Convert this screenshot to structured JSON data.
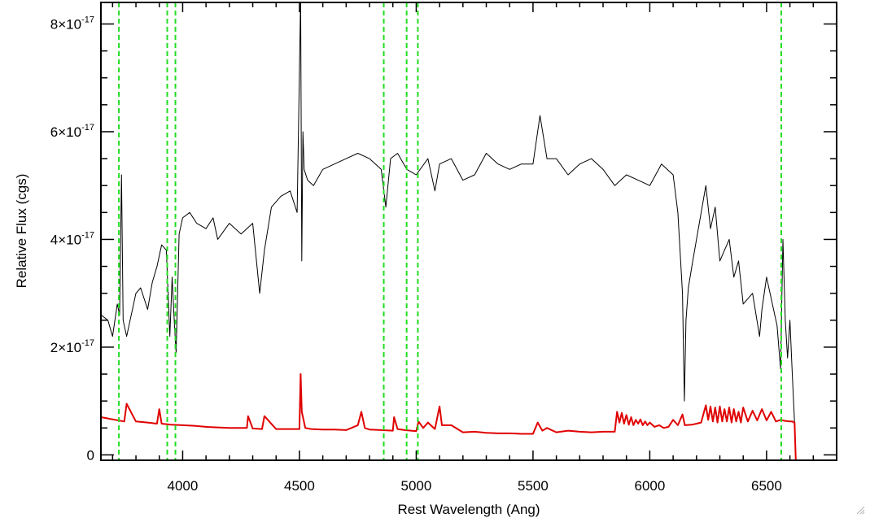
{
  "chart_data": {
    "type": "line",
    "xlabel": "Rest Wavelength (Ang)",
    "ylabel": "Relative Flux (cgs)",
    "xlim": [
      3650,
      6800
    ],
    "ylim": [
      -1e-18,
      8.4e-17
    ],
    "x_ticks": [
      4000,
      4500,
      5000,
      5500,
      6000,
      6500
    ],
    "y_ticks": [
      {
        "value": 0,
        "mantissa": "0",
        "exponent": ""
      },
      {
        "value": 2e-17,
        "mantissa": "2×10",
        "exponent": "-17"
      },
      {
        "value": 4e-17,
        "mantissa": "4×10",
        "exponent": "-17"
      },
      {
        "value": 6e-17,
        "mantissa": "6×10",
        "exponent": "-17"
      },
      {
        "value": 8e-17,
        "mantissa": "8×10",
        "exponent": "-17"
      }
    ],
    "series": [
      {
        "color": "#000000",
        "x": [
          3650,
          3680,
          3700,
          3720,
          3730,
          3738,
          3745,
          3760,
          3780,
          3800,
          3820,
          3850,
          3870,
          3890,
          3910,
          3930,
          3945,
          3955,
          3965,
          3972,
          3985,
          4000,
          4030,
          4060,
          4100,
          4130,
          4150,
          4200,
          4250,
          4300,
          4330,
          4350,
          4380,
          4420,
          4460,
          4490,
          4505,
          4510,
          4515,
          4520,
          4535,
          4560,
          4600,
          4650,
          4700,
          4750,
          4800,
          4850,
          4870,
          4890,
          4920,
          4960,
          5000,
          5050,
          5080,
          5100,
          5150,
          5200,
          5250,
          5300,
          5350,
          5400,
          5450,
          5500,
          5530,
          5560,
          5600,
          5650,
          5700,
          5750,
          5800,
          5850,
          5900,
          5950,
          6000,
          6050,
          6100,
          6120,
          6140,
          6148,
          6155,
          6165,
          6180,
          6200,
          6240,
          6260,
          6280,
          6300,
          6340,
          6360,
          6380,
          6400,
          6440,
          6470,
          6480,
          6500,
          6530,
          6545,
          6560,
          6570,
          6580,
          6590,
          6600,
          6610,
          6620
        ],
        "y": [
          2.6e-17,
          2.5e-17,
          2.2e-17,
          2.8e-17,
          2.6e-17,
          5.2e-17,
          2.5e-17,
          2.2e-17,
          2.6e-17,
          3e-17,
          3.1e-17,
          2.7e-17,
          3.2e-17,
          3.5e-17,
          3.9e-17,
          3.8e-17,
          2.2e-17,
          3.3e-17,
          2.4e-17,
          1.9e-17,
          4.1e-17,
          4.4e-17,
          4.5e-17,
          4.3e-17,
          4.2e-17,
          4.4e-17,
          4e-17,
          4.3e-17,
          4.1e-17,
          4.3e-17,
          3e-17,
          3.8e-17,
          4.6e-17,
          4.8e-17,
          4.9e-17,
          4.5e-17,
          8.5e-17,
          3.6e-17,
          6e-17,
          5.3e-17,
          5.1e-17,
          5e-17,
          5.3e-17,
          5.4e-17,
          5.5e-17,
          5.6e-17,
          5.5e-17,
          5.3e-17,
          4.6e-17,
          5.5e-17,
          5.6e-17,
          5.3e-17,
          5.2e-17,
          5.5e-17,
          4.9e-17,
          5.4e-17,
          5.5e-17,
          5.1e-17,
          5.2e-17,
          5.6e-17,
          5.4e-17,
          5.3e-17,
          5.4e-17,
          5.4e-17,
          6.3e-17,
          5.5e-17,
          5.5e-17,
          5.2e-17,
          5.4e-17,
          5.5e-17,
          5.3e-17,
          5e-17,
          5.2e-17,
          5.1e-17,
          5e-17,
          5.4e-17,
          5.2e-17,
          4.5e-17,
          3e-17,
          1e-17,
          2.5e-17,
          3.1e-17,
          3.5e-17,
          4e-17,
          5e-17,
          4.2e-17,
          4.6e-17,
          3.6e-17,
          4e-17,
          3.3e-17,
          3.6e-17,
          2.8e-17,
          3e-17,
          2.2e-17,
          2.7e-17,
          3.3e-17,
          2.7e-17,
          2.4e-17,
          1.6e-17,
          4e-17,
          2.5e-17,
          1.8e-17,
          2.5e-17,
          1.5e-17,
          6e-18
        ]
      },
      {
        "color": "#e00000",
        "x": [
          3650,
          3700,
          3750,
          3760,
          3800,
          3850,
          3890,
          3900,
          3910,
          3950,
          4000,
          4050,
          4100,
          4150,
          4200,
          4250,
          4275,
          4280,
          4300,
          4340,
          4350,
          4400,
          4450,
          4500,
          4505,
          4510,
          4520,
          4525,
          4550,
          4600,
          4650,
          4700,
          4750,
          4765,
          4780,
          4800,
          4850,
          4900,
          4905,
          4920,
          4950,
          5000,
          5010,
          5030,
          5050,
          5080,
          5100,
          5110,
          5150,
          5200,
          5250,
          5300,
          5350,
          5400,
          5450,
          5500,
          5520,
          5540,
          5560,
          5600,
          5650,
          5700,
          5750,
          5800,
          5850,
          5860,
          5870,
          5880,
          5890,
          5900,
          5910,
          5920,
          5930,
          5940,
          5950,
          5960,
          5970,
          5980,
          5990,
          6000,
          6020,
          6040,
          6060,
          6080,
          6100,
          6120,
          6140,
          6150,
          6180,
          6200,
          6220,
          6240,
          6250,
          6260,
          6270,
          6280,
          6290,
          6300,
          6310,
          6320,
          6330,
          6340,
          6350,
          6360,
          6370,
          6380,
          6390,
          6400,
          6420,
          6440,
          6460,
          6480,
          6500,
          6520,
          6540,
          6560,
          6580,
          6600,
          6610,
          6620,
          6625,
          6650,
          6700,
          6800
        ],
        "y": [
          7e-18,
          6.6e-18,
          6.2e-18,
          9.5e-18,
          6.2e-18,
          6e-18,
          5.8e-18,
          8.5e-18,
          5.8e-18,
          5.6e-18,
          5.5e-18,
          5.4e-18,
          5.2e-18,
          5.1e-18,
          5e-18,
          5e-18,
          5e-18,
          7.2e-18,
          4.9e-18,
          4.8e-18,
          7.2e-18,
          4.8e-18,
          4.8e-18,
          4.8e-18,
          1.5e-17,
          8e-18,
          6e-18,
          5e-18,
          4.8e-18,
          4.7e-18,
          4.7e-18,
          4.6e-18,
          5.5e-18,
          8e-18,
          5e-18,
          4.7e-18,
          4.6e-18,
          4.5e-18,
          7e-18,
          4.8e-18,
          4.6e-18,
          4.4e-18,
          6.2e-18,
          5e-18,
          6e-18,
          4.8e-18,
          9e-18,
          5.5e-18,
          5.5e-18,
          4.2e-18,
          4.3e-18,
          4.1e-18,
          4e-18,
          4e-18,
          3.9e-18,
          3.9e-18,
          6e-18,
          4.5e-18,
          5e-18,
          4.2e-18,
          4.5e-18,
          4.3e-18,
          4.2e-18,
          4.3e-18,
          4.3e-18,
          8e-18,
          6e-18,
          7.8e-18,
          5.8e-18,
          7.4e-18,
          5.6e-18,
          7e-18,
          5.5e-18,
          6.5e-18,
          5.8e-18,
          6.6e-18,
          5.5e-18,
          6.2e-18,
          5.5e-18,
          6e-18,
          5.2e-18,
          5.5e-18,
          5e-18,
          5.2e-18,
          6.5e-18,
          5.5e-18,
          7.5e-18,
          5.5e-18,
          5.6e-18,
          5.8e-18,
          6e-18,
          9.2e-18,
          6.5e-18,
          9e-18,
          6.2e-18,
          8.8e-18,
          6e-18,
          9e-18,
          6.2e-18,
          8.5e-18,
          6.2e-18,
          8.8e-18,
          6e-18,
          8.5e-18,
          6.2e-18,
          8e-18,
          6e-18,
          8.8e-18,
          6.2e-18,
          8.2e-18,
          6.4e-18,
          8.5e-18,
          6.4e-18,
          8e-18,
          6.2e-18,
          6.5e-18,
          6.3e-18,
          6.2e-18,
          6.2e-18,
          6e-18,
          -1e-18,
          -1e-18,
          -1e-18,
          -1e-18
        ]
      }
    ],
    "reference_lines": {
      "color": "#22dd22",
      "style": "dashed",
      "x": [
        3727,
        3934,
        3969,
        4861,
        4959,
        5007,
        6563
      ]
    },
    "grid": false,
    "legend": "none"
  },
  "resize_grip": "resize-grip-icon"
}
